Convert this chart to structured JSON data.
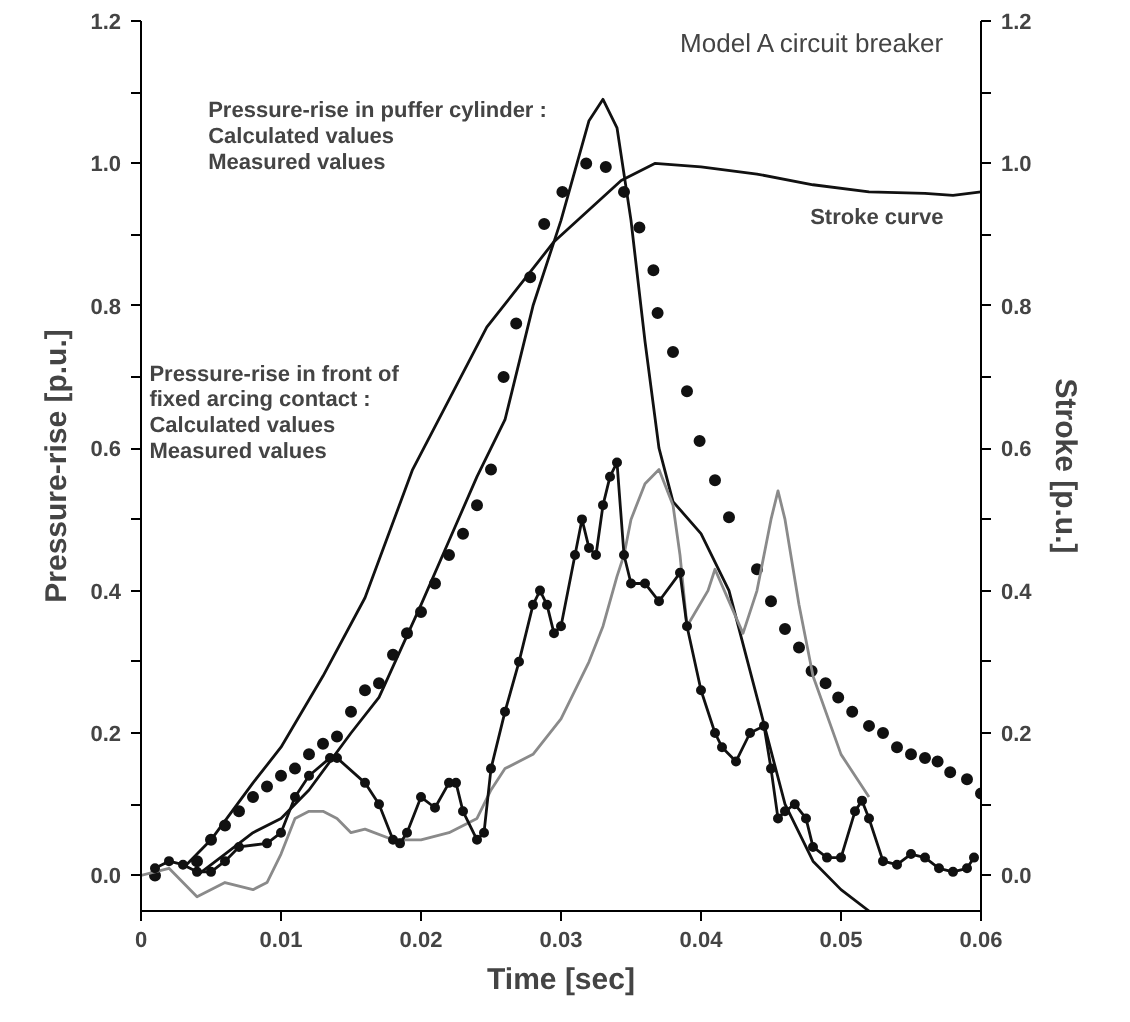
{
  "chart_data": {
    "type": "line",
    "title": "Model A circuit breaker",
    "xlabel": "Time [sec]",
    "ylabel": "Pressure-rise [p.u.]",
    "y2label": "Stroke [p.u.]",
    "xlim": [
      0,
      0.06
    ],
    "xticks": [
      0,
      0.01,
      0.02,
      0.03,
      0.04,
      0.05,
      0.06
    ],
    "ylim": [
      -0.05,
      1.2
    ],
    "yticks": [
      {
        "value": 0,
        "label": "0.0"
      },
      {
        "value": 0.1,
        "label": null
      },
      {
        "value": 0.2,
        "label": "0.2"
      },
      {
        "value": 0.3,
        "label": null
      },
      {
        "value": 0.4,
        "label": "0.4"
      },
      {
        "value": 0.5,
        "label": null
      },
      {
        "value": 0.6,
        "label": "0.6"
      },
      {
        "value": 0.7,
        "label": null
      },
      {
        "value": 0.8,
        "label": "0.8"
      },
      {
        "value": 0.9,
        "label": null
      },
      {
        "value": 1,
        "label": "1.0"
      },
      {
        "value": 1.1,
        "label": null
      },
      {
        "value": 1.2,
        "label": "1.2"
      }
    ],
    "y2lim": [
      -0.05,
      1.2
    ],
    "y2ticks": [
      {
        "value": 0,
        "label": "0.0"
      },
      {
        "value": 0.1,
        "label": null
      },
      {
        "value": 0.2,
        "label": "0.2"
      },
      {
        "value": 0.3,
        "label": null
      },
      {
        "value": 0.4,
        "label": "0.4"
      },
      {
        "value": 0.5,
        "label": null
      },
      {
        "value": 0.6,
        "label": "0.6"
      },
      {
        "value": 0.7,
        "label": null
      },
      {
        "value": 0.8,
        "label": "0.8"
      },
      {
        "value": 0.9,
        "label": null
      },
      {
        "value": 1,
        "label": "1.0"
      },
      {
        "value": 1.1,
        "label": null
      },
      {
        "value": 1.2,
        "label": "1.2"
      }
    ],
    "grid": false,
    "annotations": [
      "Pressure-rise in puffer cylinder :\nCalculated values\nMeasured  values",
      "Pressure-rise in front of\n    fixed arcing contact  :\nCalculated values\nMeasured  values",
      "Stroke curve"
    ],
    "series": [
      {
        "marker": "none",
        "color": "#111111",
        "x": [
          0.003,
          0.005,
          0.008,
          0.01,
          0.013,
          0.016,
          0.0194,
          0.0247,
          0.0295,
          0.0343,
          0.0367,
          0.04,
          0.044,
          0.048,
          0.052,
          0.056,
          0.058,
          0.06
        ],
        "values": [
          0.01,
          0.05,
          0.13,
          0.18,
          0.28,
          0.39,
          0.57,
          0.77,
          0.89,
          0.976,
          1.0,
          0.995,
          0.985,
          0.97,
          0.96,
          0.958,
          0.955,
          0.96
        ]
      },
      {
        "marker": "none",
        "color": "#111111",
        "x": [
          0.004,
          0.006,
          0.008,
          0.01,
          0.012,
          0.015,
          0.017,
          0.02,
          0.022,
          0.024,
          0.026,
          0.028,
          0.03,
          0.032,
          0.033,
          0.034,
          0.035,
          0.036,
          0.037,
          0.038,
          0.04,
          0.042,
          0.044,
          0.046,
          0.048,
          0.05,
          0.052
        ],
        "values": [
          0.0,
          0.03,
          0.06,
          0.08,
          0.12,
          0.2,
          0.25,
          0.38,
          0.47,
          0.56,
          0.64,
          0.8,
          0.92,
          1.06,
          1.09,
          1.05,
          0.92,
          0.75,
          0.6,
          0.525,
          0.48,
          0.4,
          0.25,
          0.1,
          0.02,
          -0.02,
          -0.05
        ]
      },
      {
        "type": "scatter",
        "marker": "circle",
        "color": "#111111",
        "x": [
          0.001,
          0.004,
          0.005,
          0.006,
          0.007,
          0.008,
          0.009,
          0.01,
          0.011,
          0.012,
          0.013,
          0.014,
          0.015,
          0.016,
          0.017,
          0.018,
          0.019,
          0.02,
          0.021,
          0.022,
          0.023,
          0.024,
          0.025,
          0.0259,
          0.0268,
          0.0278,
          0.0288,
          0.0301,
          0.0318,
          0.0332,
          0.0345,
          0.0356,
          0.0366,
          0.0369,
          0.038,
          0.039,
          0.0399,
          0.041,
          0.042,
          0.044,
          0.045,
          0.046,
          0.047,
          0.0479,
          0.0489,
          0.0498,
          0.0508,
          0.052,
          0.053,
          0.054,
          0.055,
          0.056,
          0.0569,
          0.0578,
          0.059,
          0.06
        ],
        "values": [
          0.0,
          0.02,
          0.05,
          0.07,
          0.09,
          0.11,
          0.125,
          0.14,
          0.15,
          0.17,
          0.185,
          0.195,
          0.23,
          0.26,
          0.27,
          0.31,
          0.34,
          0.37,
          0.41,
          0.45,
          0.48,
          0.52,
          0.57,
          0.7,
          0.775,
          0.84,
          0.915,
          0.96,
          1.0,
          0.995,
          0.96,
          0.91,
          0.85,
          0.79,
          0.735,
          0.68,
          0.61,
          0.555,
          0.503,
          0.43,
          0.385,
          0.346,
          0.32,
          0.287,
          0.27,
          0.25,
          0.23,
          0.21,
          0.2,
          0.18,
          0.17,
          0.165,
          0.16,
          0.145,
          0.135,
          0.115
        ]
      },
      {
        "marker": "none",
        "color": "#8a8a8a",
        "x": [
          0.0,
          0.002,
          0.003,
          0.004,
          0.006,
          0.008,
          0.009,
          0.01,
          0.011,
          0.012,
          0.013,
          0.014,
          0.015,
          0.016,
          0.018,
          0.02,
          0.022,
          0.024,
          0.025,
          0.026,
          0.028,
          0.03,
          0.032,
          0.033,
          0.034,
          0.0345,
          0.035,
          0.036,
          0.037,
          0.038,
          0.0385,
          0.039,
          0.0405,
          0.041,
          0.043,
          0.044,
          0.045,
          0.0455,
          0.046,
          0.047,
          0.048,
          0.05,
          0.052
        ],
        "values": [
          0.0,
          0.01,
          -0.01,
          -0.03,
          -0.01,
          -0.02,
          -0.01,
          0.03,
          0.08,
          0.09,
          0.09,
          0.08,
          0.06,
          0.065,
          0.05,
          0.05,
          0.06,
          0.08,
          0.12,
          0.15,
          0.17,
          0.22,
          0.3,
          0.35,
          0.42,
          0.45,
          0.5,
          0.55,
          0.57,
          0.52,
          0.45,
          0.35,
          0.4,
          0.43,
          0.34,
          0.4,
          0.5,
          0.54,
          0.5,
          0.38,
          0.28,
          0.17,
          0.11
        ]
      },
      {
        "marker": "circle",
        "color": "#111111",
        "x": [
          0.001,
          0.002,
          0.003,
          0.004,
          0.005,
          0.006,
          0.007,
          0.009,
          0.01,
          0.011,
          0.012,
          0.0135,
          0.014,
          0.016,
          0.017,
          0.018,
          0.0185,
          0.019,
          0.02,
          0.021,
          0.022,
          0.0225,
          0.023,
          0.024,
          0.0245,
          0.025,
          0.026,
          0.027,
          0.028,
          0.0285,
          0.029,
          0.0295,
          0.03,
          0.031,
          0.0315,
          0.032,
          0.0325,
          0.033,
          0.0335,
          0.034,
          0.0345,
          0.035,
          0.036,
          0.037,
          0.0385,
          0.039,
          0.04,
          0.041,
          0.0415,
          0.0425,
          0.0435,
          0.0445,
          0.045,
          0.0455,
          0.046,
          0.0467,
          0.0475,
          0.048,
          0.049,
          0.05,
          0.051,
          0.0515,
          0.052,
          0.053,
          0.054,
          0.055,
          0.056,
          0.057,
          0.058,
          0.059,
          0.0595
        ],
        "values": [
          0.01,
          0.02,
          0.015,
          0.005,
          0.005,
          0.02,
          0.04,
          0.045,
          0.06,
          0.11,
          0.14,
          0.165,
          0.165,
          0.13,
          0.1,
          0.05,
          0.045,
          0.06,
          0.11,
          0.095,
          0.13,
          0.13,
          0.09,
          0.05,
          0.06,
          0.15,
          0.23,
          0.3,
          0.38,
          0.4,
          0.38,
          0.34,
          0.35,
          0.45,
          0.5,
          0.46,
          0.45,
          0.52,
          0.56,
          0.58,
          0.45,
          0.41,
          0.41,
          0.385,
          0.425,
          0.35,
          0.26,
          0.2,
          0.18,
          0.16,
          0.2,
          0.21,
          0.15,
          0.08,
          0.09,
          0.1,
          0.08,
          0.04,
          0.025,
          0.025,
          0.09,
          0.105,
          0.08,
          0.02,
          0.015,
          0.03,
          0.025,
          0.01,
          0.005,
          0.01,
          0.025
        ]
      }
    ]
  }
}
